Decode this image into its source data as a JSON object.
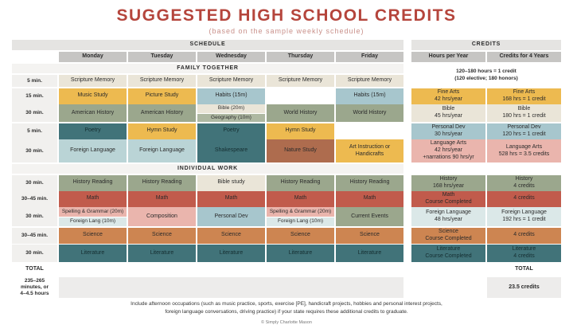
{
  "palette": {
    "title_red": "#b5453c",
    "cream": "#eae5d8",
    "gold": "#edba50",
    "sage": "#9ba78d",
    "blue": "#a7c6cd",
    "pale_blue": "#dbe8e8",
    "teal": "#417379",
    "rust": "#ae6c4e",
    "red": "#c15b4c",
    "pink": "#eab5ad",
    "orange": "#cd8551",
    "header_gray": "#c6c5c3"
  },
  "header": {
    "title": "SUGGESTED HIGH SCHOOL CREDITS",
    "subtitle": "(based on the sample weekly schedule)"
  },
  "columns": {
    "schedule": "SCHEDULE",
    "credits": "CREDITS",
    "days": [
      "Monday",
      "Tuesday",
      "Wednesday",
      "Thursday",
      "Friday"
    ],
    "credit_cols": [
      "Hours per Year",
      "Credits for 4 Years"
    ]
  },
  "credits_note": "120–180 hours = 1 credit\n(120 elective; 180 honors)",
  "sections": {
    "family": "FAMILY TOGETHER",
    "individual": "INDIVIDUAL WORK"
  },
  "family": [
    {
      "time": "5 min.",
      "mon": "Scripture Memory",
      "tue": "Scripture Memory",
      "wed": "Scripture Memory",
      "thu": "Scripture Memory",
      "fri": "Scripture Memory",
      "hours": "",
      "credits": ""
    },
    {
      "time": "15 min.",
      "mon": "Music Study",
      "tue": "Picture Study",
      "wed": "Habits (15m)",
      "thu": "",
      "fri": "Habits (15m)",
      "hours": "Fine Arts\n42 hrs/year",
      "credits": "Fine Arts\n168 hrs = 1 credit"
    },
    {
      "time": "30 min.",
      "mon": "American History",
      "tue": "American History",
      "wed_top": "Bible (20m)",
      "wed_bottom": "Geography (10m)",
      "thu": "World History",
      "fri": "World History",
      "hours": "Bible\n45 hrs/year",
      "credits": "Bible\n180 hrs = 1 credit"
    },
    {
      "time": "5 min.",
      "mon": "Poetry",
      "tue": "Hymn Study",
      "wed": "Poetry",
      "thu": "Hymn Study",
      "fri": "",
      "hours": "Personal Dev\n30 hrs/year",
      "credits": "Personal Dev\n120 hrs = 1 credit"
    },
    {
      "time": "30 min.",
      "mon": "Foreign Language",
      "tue": "Foreign Language",
      "wed": "Shakespeare",
      "thu": "Nature Study",
      "fri": "Art Instruction or\nHandicrafts",
      "hours": "Language Arts\n42 hrs/year\n+narrations 90 hrs/yr",
      "credits": "Language Arts\n528 hrs = 3.5 credits"
    }
  ],
  "individual": [
    {
      "time": "30 min.",
      "mon": "History Reading",
      "tue": "History Reading",
      "wed": "Bible study",
      "thu": "History Reading",
      "fri": "History Reading",
      "hours": "History\n168 hrs/year",
      "credits": "History\n4 credits"
    },
    {
      "time": "30–45 min.",
      "mon": "Math",
      "tue": "Math",
      "wed": "Math",
      "thu": "Math",
      "fri": "Math",
      "hours": "Math\nCourse Completed",
      "credits": "4 credits"
    },
    {
      "time": "30 min.",
      "mon_top": "Spelling & Grammar (20m)",
      "mon_bottom": "Foreign Lang (10m)",
      "tue": "Composition",
      "wed": "Personal Dev",
      "thu_top": "Spelling & Grammar (20m)",
      "thu_bottom": "Foreign Lang (10m)",
      "fri": "Current Events",
      "hours": "Foreign Language\n48 hrs/year",
      "credits": "Foreign Language\n192 hrs = 1 credit"
    },
    {
      "time": "30–45 min.",
      "mon": "Science",
      "tue": "Science",
      "wed": "Science",
      "thu": "Science",
      "fri": "Science",
      "hours": "Science\nCourse Completed",
      "credits": "4 credits"
    },
    {
      "time": "30 min.",
      "mon": "Literature",
      "tue": "Literature",
      "wed": "Literature",
      "thu": "Literature",
      "fri": "Literature",
      "hours": "Literature\nCourse Completed",
      "credits": "Literature\n4 credits"
    }
  ],
  "totals": {
    "label_left": "TOTAL",
    "label_right": "TOTAL",
    "minutes": "235–265\nminutes, or\n4–4.5 hours",
    "credits": "23.5 credits"
  },
  "footnote": "Include afternoon occupations (such as music practice, sports, exercise [PE], handicraft projects, hobbies and personal interest projects,\nforeign language conversations, driving practice) if your state requires these additional credits to graduate.",
  "copyright": "© Simply Charlotte Mason"
}
